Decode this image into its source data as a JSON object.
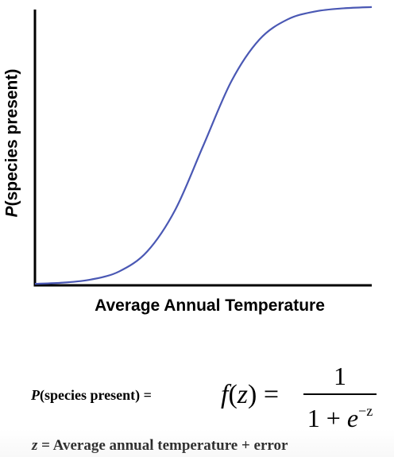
{
  "chart_data": {
    "type": "line",
    "title": "",
    "ylabel_italic": "P",
    "ylabel_rest": "(species present)",
    "xlabel": "Average Annual Temperature",
    "x_ticks": "none",
    "y_ticks": "none",
    "grid": false,
    "ylim": [
      0,
      1
    ],
    "xlim": [
      -6,
      6
    ],
    "series": [
      {
        "color": "#4a58b4",
        "x": [
          -6,
          -5,
          -4,
          -3,
          -2,
          -1,
          0,
          1,
          2,
          3,
          4,
          5,
          6
        ],
        "y": [
          0.0025,
          0.0067,
          0.018,
          0.047,
          0.119,
          0.269,
          0.5,
          0.731,
          0.881,
          0.953,
          0.982,
          0.993,
          0.9975
        ]
      }
    ]
  },
  "equation": {
    "lhs_italic": "P",
    "lhs_rest": "(species present) =",
    "func_italic_f": "f",
    "func_paren_open": "(",
    "func_italic_z": "z",
    "func_paren_close": ") =",
    "numerator": "1",
    "denominator_prefix": "1 + ",
    "denominator_base": "e",
    "denominator_exponent": "−z"
  },
  "definition": {
    "var": "z",
    "text": " = Average annual temperature + error"
  }
}
